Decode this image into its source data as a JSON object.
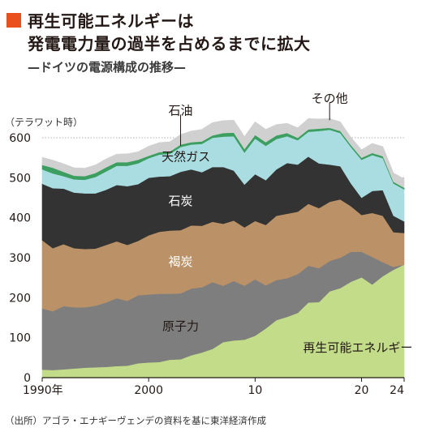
{
  "header": {
    "title_line1": "再生可能エネルギーは",
    "title_line2": "発電電力量の過半を占めるまでに拡大",
    "subtitle": "—ドイツの電源構成の推移—",
    "accent_color": "#e9501b"
  },
  "footer": {
    "source": "（出所）アゴラ・エナギーヴェンデの資料を基に東洋経済作成"
  },
  "chart_data": {
    "type": "area",
    "stacked": true,
    "unit_label": "（テラワット時）",
    "ylim": [
      0,
      600
    ],
    "yticks": [
      0,
      100,
      200,
      300,
      400,
      500,
      600
    ],
    "xlim": [
      1990,
      2024
    ],
    "xticks": [
      {
        "value": 1990,
        "label": "1990年"
      },
      {
        "value": 2000,
        "label": "2000"
      },
      {
        "value": 2010,
        "label": "10"
      },
      {
        "value": 2020,
        "label": "20"
      },
      {
        "value": 2024,
        "label": "24"
      }
    ],
    "grid": true,
    "x": [
      1990,
      1991,
      1992,
      1993,
      1994,
      1995,
      1996,
      1997,
      1998,
      1999,
      2000,
      2001,
      2002,
      2003,
      2004,
      2005,
      2006,
      2007,
      2008,
      2009,
      2010,
      2011,
      2012,
      2013,
      2014,
      2015,
      2016,
      2017,
      2018,
      2019,
      2020,
      2021,
      2022,
      2023,
      2024
    ],
    "series": [
      {
        "name": "再生可能エネルギー",
        "color": "#c2dc8a",
        "values": [
          20,
          19,
          21,
          23,
          25,
          26,
          27,
          29,
          30,
          36,
          38,
          39,
          45,
          46,
          56,
          63,
          72,
          89,
          93,
          95,
          105,
          123,
          144,
          152,
          162,
          188,
          189,
          216,
          224,
          240,
          251,
          233,
          254,
          270,
          283
        ]
      },
      {
        "name": "原子力",
        "color": "#7e7e7e",
        "values": [
          153,
          147,
          158,
          153,
          151,
          154,
          161,
          170,
          162,
          170,
          170,
          171,
          165,
          165,
          167,
          163,
          167,
          141,
          149,
          135,
          141,
          108,
          100,
          97,
          97,
          92,
          85,
          76,
          76,
          75,
          64,
          69,
          35,
          7,
          0
        ]
      },
      {
        "name": "褐炭",
        "color": "#bb9167",
        "values": [
          171,
          158,
          155,
          148,
          146,
          143,
          144,
          142,
          140,
          136,
          148,
          155,
          158,
          158,
          158,
          154,
          151,
          155,
          151,
          146,
          146,
          151,
          161,
          161,
          156,
          155,
          150,
          148,
          146,
          114,
          92,
          110,
          116,
          87,
          79
        ]
      },
      {
        "name": "石炭",
        "color": "#333333",
        "values": [
          141,
          150,
          139,
          139,
          139,
          138,
          138,
          141,
          147,
          142,
          144,
          138,
          136,
          146,
          140,
          134,
          137,
          142,
          125,
          107,
          117,
          112,
          116,
          127,
          118,
          118,
          112,
          93,
          83,
          57,
          43,
          55,
          64,
          41,
          29
        ]
      },
      {
        "name": "天然ガス",
        "color": "#a9dde2",
        "values": [
          36,
          37,
          31,
          33,
          34,
          41,
          46,
          48,
          51,
          52,
          49,
          55,
          56,
          62,
          62,
          71,
          73,
          76,
          86,
          80,
          89,
          86,
          76,
          67,
          61,
          62,
          81,
          87,
          83,
          91,
          95,
          90,
          80,
          81,
          80
        ]
      },
      {
        "name": "石油",
        "color": "#3c9e5f",
        "values": [
          11,
          14,
          11,
          9,
          9,
          10,
          10,
          9,
          9,
          9,
          6,
          6,
          6,
          6,
          6,
          6,
          6,
          9,
          9,
          9,
          9,
          9,
          9,
          8,
          6,
          6,
          6,
          5,
          5,
          5,
          5,
          5,
          5,
          4,
          4
        ]
      },
      {
        "name": "その他",
        "color": "#d0d0d0",
        "values": [
          19,
          19,
          20,
          20,
          20,
          20,
          21,
          20,
          21,
          20,
          24,
          24,
          24,
          25,
          28,
          30,
          32,
          31,
          31,
          31,
          33,
          32,
          27,
          24,
          25,
          27,
          24,
          23,
          23,
          19,
          20,
          24,
          24,
          22,
          22
        ]
      }
    ],
    "series_labels": [
      {
        "text": "再生可能エネルギー",
        "color": "#231815"
      },
      {
        "text": "原子力",
        "color": "#231815"
      },
      {
        "text": "褐炭",
        "color": "#ffffff"
      },
      {
        "text": "石炭",
        "color": "#ffffff"
      },
      {
        "text": "天然ガス",
        "color": "#231815"
      },
      {
        "text": "石油",
        "color": "#231815"
      },
      {
        "text": "その他",
        "color": "#231815"
      }
    ]
  }
}
